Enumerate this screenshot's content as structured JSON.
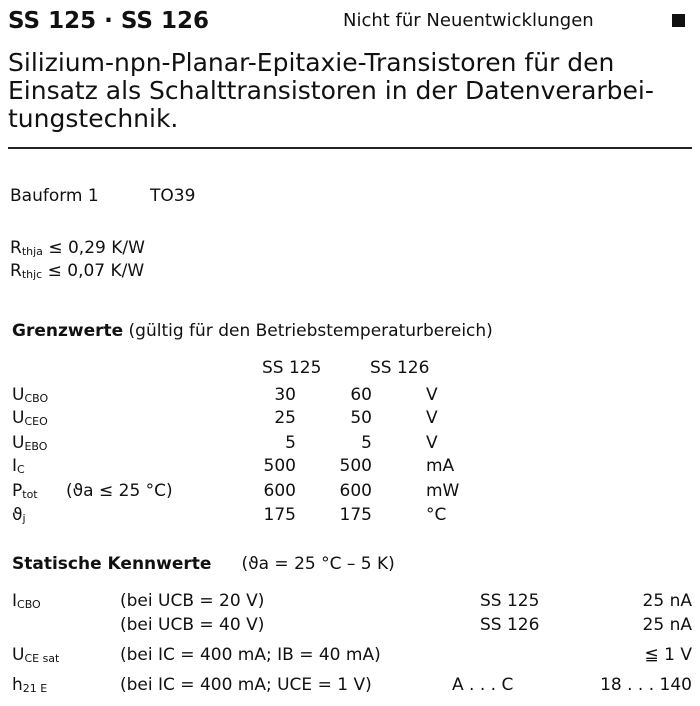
{
  "header": {
    "title": "SS 125 · SS 126",
    "note": "Nicht für Neuentwicklungen",
    "marker_icon": "black-square"
  },
  "description": [
    "Silizium-npn-Planar-Epitaxie-Transistoren  für  den",
    "Einsatz als Schalttransistoren in der Datenverarbei-",
    "tungstechnik."
  ],
  "package": {
    "label": "Bauform 1",
    "value": "TO39"
  },
  "thermal": [
    {
      "symbol": "R",
      "sub": "thja",
      "op": "≤",
      "value": "0,29 K/W"
    },
    {
      "symbol": "R",
      "sub": "thjc",
      "op": "≤",
      "value": "0,07 K/W"
    }
  ],
  "limits": {
    "heading": "Grenzwerte",
    "heading_note": "(gültig für den Betriebstemperaturbereich)",
    "columns": [
      "SS 125",
      "SS 126"
    ],
    "rows": [
      {
        "symbol": "U",
        "sub": "CBO",
        "cond": "",
        "v1": "30",
        "v2": "60",
        "unit": "V"
      },
      {
        "symbol": "U",
        "sub": "CEO",
        "cond": "",
        "v1": "25",
        "v2": "50",
        "unit": "V"
      },
      {
        "symbol": "U",
        "sub": "EBO",
        "cond": "",
        "v1": "5",
        "v2": "5",
        "unit": "V"
      },
      {
        "symbol": "I",
        "sub": "C",
        "cond": "",
        "v1": "500",
        "v2": "500",
        "unit": "mA"
      },
      {
        "symbol": "P",
        "sub": "tot",
        "cond": "(ϑa ≤ 25 °C)",
        "v1": "600",
        "v2": "600",
        "unit": "mW"
      },
      {
        "symbol": "ϑ",
        "sub": "j",
        "cond": "",
        "v1": "175",
        "v2": "175",
        "unit": "°C"
      }
    ]
  },
  "static": {
    "heading": "Statische Kennwerte",
    "heading_note": "(ϑa = 25 °C – 5 K)",
    "rows": [
      {
        "symbol": "I",
        "sub": "CBO",
        "cond": "(bei UCB = 20 V)",
        "type": "SS 125",
        "value": "25 nA"
      },
      {
        "symbol": "",
        "sub": "",
        "cond": "(bei UCB = 40 V)",
        "type": "SS 126",
        "value": "25 nA"
      },
      {
        "symbol": "U",
        "sub": "CE sat",
        "cond": "(bei IC = 400 mA; IB = 40 mA)",
        "type": "",
        "value": "≦  1 V"
      },
      {
        "symbol": "h",
        "sub": "21 E",
        "cond": "(bei IC = 400 mA; UCE = 1 V)",
        "type": "A . . . C",
        "value": "18 . . . 140"
      }
    ]
  }
}
